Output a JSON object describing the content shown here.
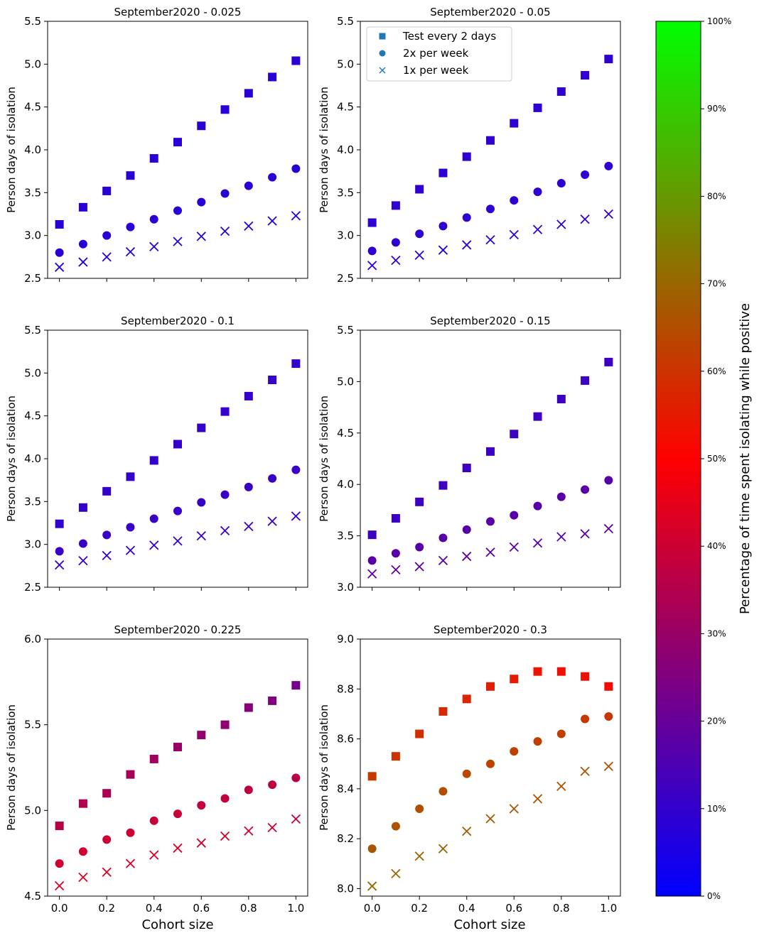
{
  "figure": {
    "x_common_label": "Cohort size",
    "colorbar": {
      "label": "Percentage of time spent isolating while positive",
      "ticks": [
        "0%",
        "10%",
        "20%",
        "30%",
        "40%",
        "50%",
        "60%",
        "70%",
        "80%",
        "90%",
        "100%"
      ],
      "range": [
        0,
        100
      ],
      "color_stops": [
        "#0000ff",
        "#ff0000",
        "#00ff00"
      ]
    },
    "legend": {
      "entries": [
        {
          "label": "Test every 2 days",
          "marker": "square"
        },
        {
          "label": "2x per week",
          "marker": "circle"
        },
        {
          "label": "1x per week",
          "marker": "x"
        }
      ],
      "marker_color": "#1f77b4"
    }
  },
  "chart_data": [
    {
      "type": "scatter",
      "title": "September2020 - 0.025",
      "xlabel": "",
      "ylabel": "Person days of isolation",
      "xlim": [
        -0.05,
        1.05
      ],
      "ylim": [
        2.5,
        5.5
      ],
      "yticks": [
        2.5,
        3.0,
        3.5,
        4.0,
        4.5,
        5.0,
        5.5
      ],
      "ytick_labels": [
        "2.5",
        "3.0",
        "3.5",
        "4.0",
        "4.5",
        "5.0",
        "5.5"
      ],
      "x": [
        0.0,
        0.1,
        0.2,
        0.3,
        0.4,
        0.5,
        0.6,
        0.7,
        0.8,
        0.9,
        1.0
      ],
      "show_xtick_labels": false,
      "series": [
        {
          "name": "Test every 2 days",
          "marker": "square",
          "values": [
            3.13,
            3.33,
            3.52,
            3.7,
            3.9,
            4.09,
            4.28,
            4.47,
            4.66,
            4.85,
            5.04
          ],
          "pct": [
            8,
            8,
            8,
            8,
            8,
            8,
            8,
            8,
            8,
            8,
            8
          ]
        },
        {
          "name": "2x per week",
          "marker": "circle",
          "values": [
            2.8,
            2.9,
            3.0,
            3.1,
            3.19,
            3.29,
            3.39,
            3.49,
            3.58,
            3.68,
            3.78
          ],
          "pct": [
            8,
            8,
            8,
            8,
            8,
            8,
            8,
            8,
            8,
            8,
            8
          ]
        },
        {
          "name": "1x per week",
          "marker": "x",
          "values": [
            2.63,
            2.69,
            2.75,
            2.81,
            2.87,
            2.93,
            2.99,
            3.05,
            3.11,
            3.17,
            3.23
          ],
          "pct": [
            8,
            8,
            8,
            8,
            8,
            8,
            8,
            8,
            8,
            8,
            8
          ]
        }
      ]
    },
    {
      "type": "scatter",
      "title": "September2020 - 0.05",
      "xlabel": "",
      "ylabel": "Person days of isolation",
      "xlim": [
        -0.05,
        1.05
      ],
      "ylim": [
        2.5,
        5.5
      ],
      "yticks": [
        2.5,
        3.0,
        3.5,
        4.0,
        4.5,
        5.0,
        5.5
      ],
      "ytick_labels": [
        "2.5",
        "3.0",
        "3.5",
        "4.0",
        "4.5",
        "5.0",
        "5.5"
      ],
      "x": [
        0.0,
        0.1,
        0.2,
        0.3,
        0.4,
        0.5,
        0.6,
        0.7,
        0.8,
        0.9,
        1.0
      ],
      "show_xtick_labels": false,
      "has_legend": true,
      "series": [
        {
          "name": "Test every 2 days",
          "marker": "square",
          "values": [
            3.15,
            3.35,
            3.54,
            3.73,
            3.92,
            4.11,
            4.31,
            4.49,
            4.68,
            4.87,
            5.06
          ],
          "pct": [
            9,
            9,
            9,
            9,
            9,
            9,
            9,
            9,
            9,
            9,
            9
          ]
        },
        {
          "name": "2x per week",
          "marker": "circle",
          "values": [
            2.82,
            2.92,
            3.02,
            3.11,
            3.21,
            3.31,
            3.41,
            3.51,
            3.61,
            3.71,
            3.81
          ],
          "pct": [
            9,
            9,
            9,
            9,
            9,
            9,
            9,
            9,
            9,
            9,
            9
          ]
        },
        {
          "name": "1x per week",
          "marker": "x",
          "values": [
            2.65,
            2.71,
            2.77,
            2.83,
            2.89,
            2.95,
            3.01,
            3.07,
            3.13,
            3.19,
            3.25
          ],
          "pct": [
            9,
            9,
            9,
            9,
            9,
            9,
            9,
            9,
            9,
            9,
            9
          ]
        }
      ]
    },
    {
      "type": "scatter",
      "title": "September2020 - 0.1",
      "xlabel": "",
      "ylabel": "Person days of isolation",
      "xlim": [
        -0.05,
        1.05
      ],
      "ylim": [
        2.5,
        5.5
      ],
      "yticks": [
        2.5,
        3.0,
        3.5,
        4.0,
        4.5,
        5.0,
        5.5
      ],
      "ytick_labels": [
        "2.5",
        "3.0",
        "3.5",
        "4.0",
        "4.5",
        "5.0",
        "5.5"
      ],
      "x": [
        0.0,
        0.1,
        0.2,
        0.3,
        0.4,
        0.5,
        0.6,
        0.7,
        0.8,
        0.9,
        1.0
      ],
      "show_xtick_labels": false,
      "series": [
        {
          "name": "Test every 2 days",
          "marker": "square",
          "values": [
            3.24,
            3.43,
            3.62,
            3.79,
            3.98,
            4.17,
            4.36,
            4.55,
            4.73,
            4.92,
            5.11
          ],
          "pct": [
            10,
            10,
            10,
            10,
            10,
            10,
            10,
            10,
            10,
            10,
            10
          ]
        },
        {
          "name": "2x per week",
          "marker": "circle",
          "values": [
            2.92,
            3.01,
            3.11,
            3.2,
            3.3,
            3.39,
            3.49,
            3.58,
            3.67,
            3.77,
            3.87
          ],
          "pct": [
            11,
            11,
            11,
            11,
            11,
            11,
            11,
            11,
            11,
            11,
            11
          ]
        },
        {
          "name": "1x per week",
          "marker": "x",
          "values": [
            2.76,
            2.81,
            2.87,
            2.93,
            2.99,
            3.04,
            3.1,
            3.16,
            3.21,
            3.27,
            3.33
          ],
          "pct": [
            11,
            11,
            11,
            11,
            11,
            11,
            11,
            11,
            11,
            11,
            11
          ]
        }
      ]
    },
    {
      "type": "scatter",
      "title": "September2020 - 0.15",
      "xlabel": "",
      "ylabel": "Person days of isolation",
      "xlim": [
        -0.05,
        1.05
      ],
      "ylim": [
        3.0,
        5.5
      ],
      "yticks": [
        3.0,
        3.5,
        4.0,
        4.5,
        5.0,
        5.5
      ],
      "ytick_labels": [
        "3.0",
        "3.5",
        "4.0",
        "4.5",
        "5.0",
        "5.5"
      ],
      "x": [
        0.0,
        0.1,
        0.2,
        0.3,
        0.4,
        0.5,
        0.6,
        0.7,
        0.8,
        0.9,
        1.0
      ],
      "show_xtick_labels": false,
      "series": [
        {
          "name": "Test every 2 days",
          "marker": "square",
          "values": [
            3.51,
            3.67,
            3.83,
            3.99,
            4.16,
            4.32,
            4.49,
            4.66,
            4.83,
            5.01,
            5.19
          ],
          "pct": [
            12,
            12,
            12,
            12,
            12,
            12,
            12,
            12,
            12,
            12,
            12
          ]
        },
        {
          "name": "2x per week",
          "marker": "circle",
          "values": [
            3.26,
            3.33,
            3.39,
            3.48,
            3.56,
            3.64,
            3.7,
            3.79,
            3.88,
            3.95,
            4.04
          ],
          "pct": [
            17,
            17,
            17,
            17,
            17,
            17,
            17,
            17,
            17,
            17,
            17
          ]
        },
        {
          "name": "1x per week",
          "marker": "x",
          "values": [
            3.13,
            3.17,
            3.2,
            3.26,
            3.3,
            3.34,
            3.39,
            3.43,
            3.49,
            3.52,
            3.57
          ],
          "pct": [
            18,
            18,
            18,
            18,
            18,
            18,
            18,
            18,
            18,
            18,
            18
          ]
        }
      ]
    },
    {
      "type": "scatter",
      "title": "September2020 - 0.225",
      "xlabel": "Cohort size",
      "ylabel": "Person days of isolation",
      "xlim": [
        -0.05,
        1.05
      ],
      "ylim": [
        4.5,
        6.0
      ],
      "yticks": [
        4.5,
        5.0,
        5.5,
        6.0
      ],
      "ytick_labels": [
        "4.5",
        "5.0",
        "5.5",
        "6.0"
      ],
      "x": [
        0.0,
        0.1,
        0.2,
        0.3,
        0.4,
        0.5,
        0.6,
        0.7,
        0.8,
        0.9,
        1.0
      ],
      "show_xtick_labels": true,
      "xticks": [
        0.0,
        0.2,
        0.4,
        0.6,
        0.8,
        1.0
      ],
      "xtick_labels": [
        "0.0",
        "0.2",
        "0.4",
        "0.6",
        "0.8",
        "1.0"
      ],
      "series": [
        {
          "name": "Test every 2 days",
          "marker": "square",
          "values": [
            4.91,
            5.04,
            5.1,
            5.21,
            5.3,
            5.37,
            5.44,
            5.5,
            5.6,
            5.64,
            5.73
          ],
          "pct": [
            36,
            35,
            34,
            33,
            32,
            30,
            29,
            28,
            26,
            25,
            23
          ]
        },
        {
          "name": "2x per week",
          "marker": "circle",
          "values": [
            4.69,
            4.76,
            4.83,
            4.87,
            4.94,
            4.98,
            5.03,
            5.07,
            5.12,
            5.15,
            5.19
          ],
          "pct": [
            41,
            41,
            40,
            40,
            39,
            39,
            38,
            38,
            37,
            37,
            36
          ]
        },
        {
          "name": "1x per week",
          "marker": "x",
          "values": [
            4.56,
            4.61,
            4.64,
            4.69,
            4.74,
            4.78,
            4.81,
            4.85,
            4.88,
            4.9,
            4.95
          ],
          "pct": [
            43,
            43,
            43,
            42,
            42,
            42,
            41,
            41,
            41,
            41,
            40
          ]
        }
      ]
    },
    {
      "type": "scatter",
      "title": "September2020 - 0.3",
      "xlabel": "Cohort size",
      "ylabel": "Person days of isolation",
      "xlim": [
        -0.05,
        1.05
      ],
      "ylim": [
        7.97,
        9.0
      ],
      "yticks": [
        8.0,
        8.2,
        8.4,
        8.6,
        8.8,
        9.0
      ],
      "ytick_labels": [
        "8.0",
        "8.2",
        "8.4",
        "8.6",
        "8.8",
        "9.0"
      ],
      "x": [
        0.0,
        0.1,
        0.2,
        0.3,
        0.4,
        0.5,
        0.6,
        0.7,
        0.8,
        0.9,
        1.0
      ],
      "show_xtick_labels": true,
      "xticks": [
        0.0,
        0.2,
        0.4,
        0.6,
        0.8,
        1.0
      ],
      "xtick_labels": [
        "0.0",
        "0.2",
        "0.4",
        "0.6",
        "0.8",
        "1.0"
      ],
      "series": [
        {
          "name": "Test every 2 days",
          "marker": "square",
          "values": [
            8.45,
            8.53,
            8.62,
            8.71,
            8.76,
            8.81,
            8.84,
            8.87,
            8.87,
            8.85,
            8.81
          ],
          "pct": [
            61,
            60,
            59,
            58,
            57,
            56,
            55,
            54,
            53,
            53,
            52
          ]
        },
        {
          "name": "2x per week",
          "marker": "circle",
          "values": [
            8.16,
            8.25,
            8.32,
            8.39,
            8.46,
            8.5,
            8.55,
            8.59,
            8.62,
            8.68,
            8.69
          ],
          "pct": [
            67,
            66,
            65,
            65,
            64,
            63,
            63,
            62,
            62,
            61,
            61
          ]
        },
        {
          "name": "1x per week",
          "marker": "x",
          "values": [
            8.01,
            8.06,
            8.13,
            8.16,
            8.23,
            8.28,
            8.32,
            8.36,
            8.41,
            8.47,
            8.49
          ],
          "pct": [
            70,
            70,
            69,
            69,
            68,
            68,
            67,
            67,
            66,
            66,
            65
          ]
        }
      ]
    }
  ]
}
